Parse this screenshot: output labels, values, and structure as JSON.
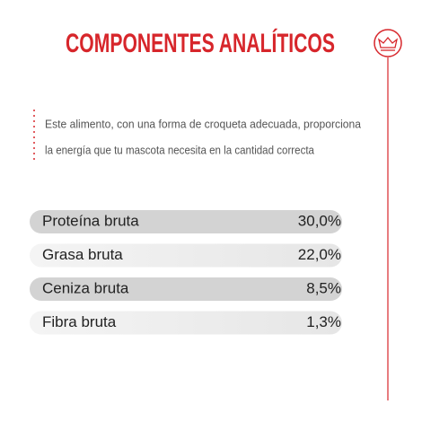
{
  "header": {
    "title": "COMPONENTES ANALÍTICOS"
  },
  "description": {
    "lines": [
      "Este alimento, con una forma de croqueta adecuada, proporciona",
      "la energía que tu mascota necesita en la cantidad correcta"
    ]
  },
  "table": {
    "rows": [
      [
        "Proteína bruta",
        "30,0%"
      ],
      [
        "Grasa bruta",
        "22,0%"
      ],
      [
        "Ceniza bruta",
        "8,5%"
      ],
      [
        "Fibra bruta",
        "1,3%"
      ]
    ]
  }
}
